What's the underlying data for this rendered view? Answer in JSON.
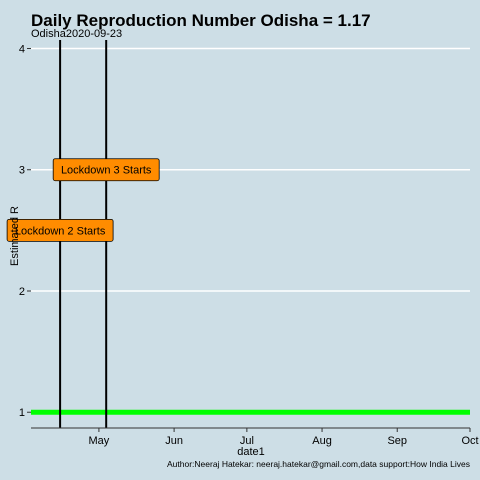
{
  "chart_data": {
    "type": "line",
    "title": "Daily Reproduction Number Odisha = 1.17",
    "subtitle": "Odisha2020-09-23",
    "xlabel": "date1",
    "ylabel": "Estimated R",
    "caption": "Author:Neeraj Hatekar: neeraj.hatekar@gmail.com,data support:How India Lives",
    "x_ticks": [
      {
        "label": "May",
        "date": "2020-05-01"
      },
      {
        "label": "Jun",
        "date": "2020-06-01"
      },
      {
        "label": "Jul",
        "date": "2020-07-01"
      },
      {
        "label": "Aug",
        "date": "2020-08-01"
      },
      {
        "label": "Sep",
        "date": "2020-09-01"
      },
      {
        "label": "Oct",
        "date": "2020-10-01"
      }
    ],
    "xlim": [
      "2020-04-03",
      "2020-10-01"
    ],
    "y_ticks": [
      1,
      2,
      3,
      4
    ],
    "ylim": [
      0.87,
      4.07
    ],
    "reference_line": {
      "y": 1,
      "color": "#00ff00"
    },
    "events": [
      {
        "date": "2020-04-15",
        "label": "Lockdown 2 Starts",
        "label_y": 2.5
      },
      {
        "date": "2020-05-04",
        "label": "Lockdown 3 Starts",
        "label_y": 3.0
      }
    ],
    "grid": true,
    "colors": {
      "background": "#cddee6",
      "grid": "#ffffff",
      "event_line": "#000000",
      "annotation_fill": "#ff8c00",
      "reference": "#00ff00"
    }
  }
}
